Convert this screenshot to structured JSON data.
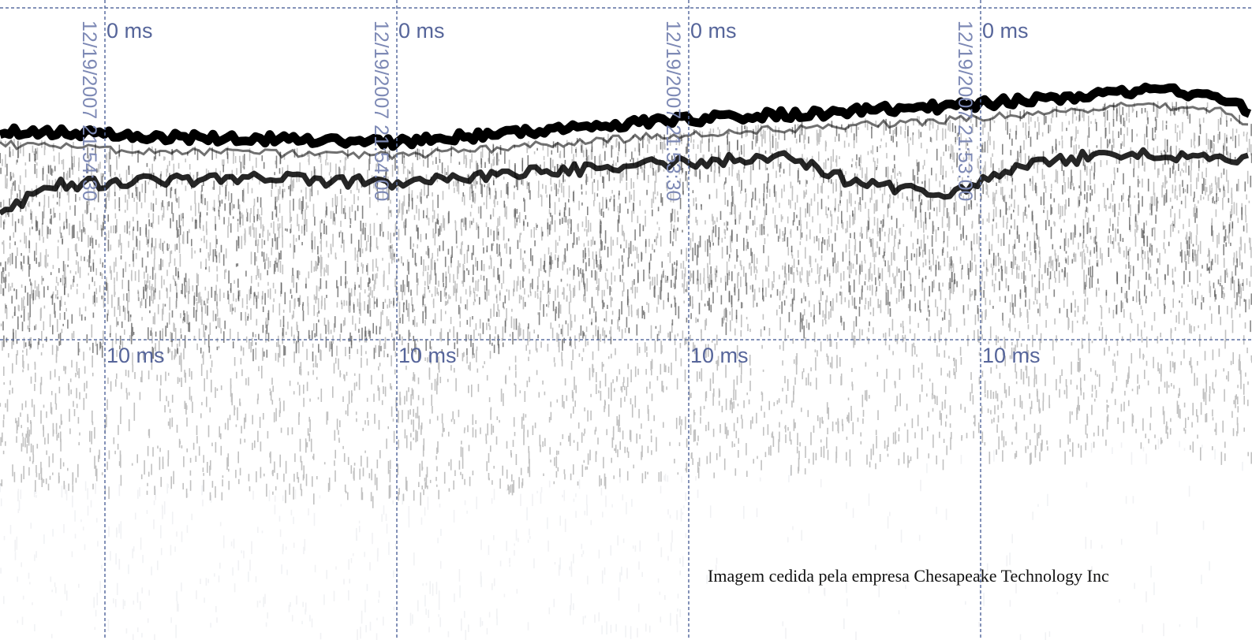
{
  "markers": [
    {
      "timestamp": "12/19/2007 21:54:30",
      "top_label": "0 ms",
      "bottom_label": "10 ms"
    },
    {
      "timestamp": "12/19/2007 21:54:00",
      "top_label": "0 ms",
      "bottom_label": "10 ms"
    },
    {
      "timestamp": "12/19/2007 21:53:30",
      "top_label": "0 ms",
      "bottom_label": "10 ms"
    },
    {
      "timestamp": "12/19/2007 21:53:00",
      "top_label": "0 ms",
      "bottom_label": "10 ms"
    }
  ],
  "credit": "Imagem cedida pela empresa Chesapeake Technology Inc"
}
